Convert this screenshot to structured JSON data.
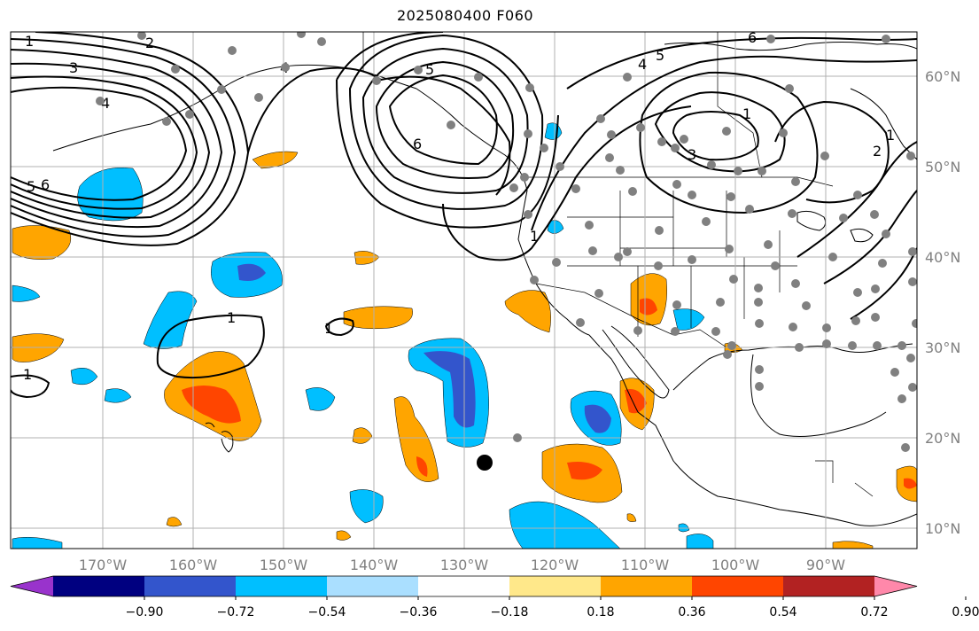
{
  "title": "2025080400 F060",
  "lon_labels": [
    "170°W",
    "160°W",
    "150°W",
    "140°W",
    "130°W",
    "120°W",
    "110°W",
    "100°W",
    "90°W"
  ],
  "lat_labels": [
    "60°N",
    "50°N",
    "40°N",
    "30°N",
    "20°N",
    "10°N"
  ],
  "colorbar": {
    "colors": [
      "#9933cc",
      "#000080",
      "#3355cc",
      "#00bfff",
      "#aadfff",
      "#ffffff",
      "#ffe88a",
      "#ffa500",
      "#ff4500",
      "#b22222",
      "#ff88aa"
    ],
    "tick_labels": [
      "−0.90",
      "−0.72",
      "−0.54",
      "−0.36",
      "−0.18",
      "0.18",
      "0.36",
      "0.54",
      "0.72",
      "0.90"
    ]
  },
  "contour_labels": [
    "1",
    "2",
    "3",
    "4",
    "5",
    "6",
    "5",
    "6",
    "1",
    "1",
    "5",
    "4",
    "3",
    "2",
    "1",
    "6",
    "5",
    "4",
    "3",
    "2",
    "1",
    "6",
    "1",
    "1"
  ],
  "storm_marker": "tropical-cyclone-center"
}
